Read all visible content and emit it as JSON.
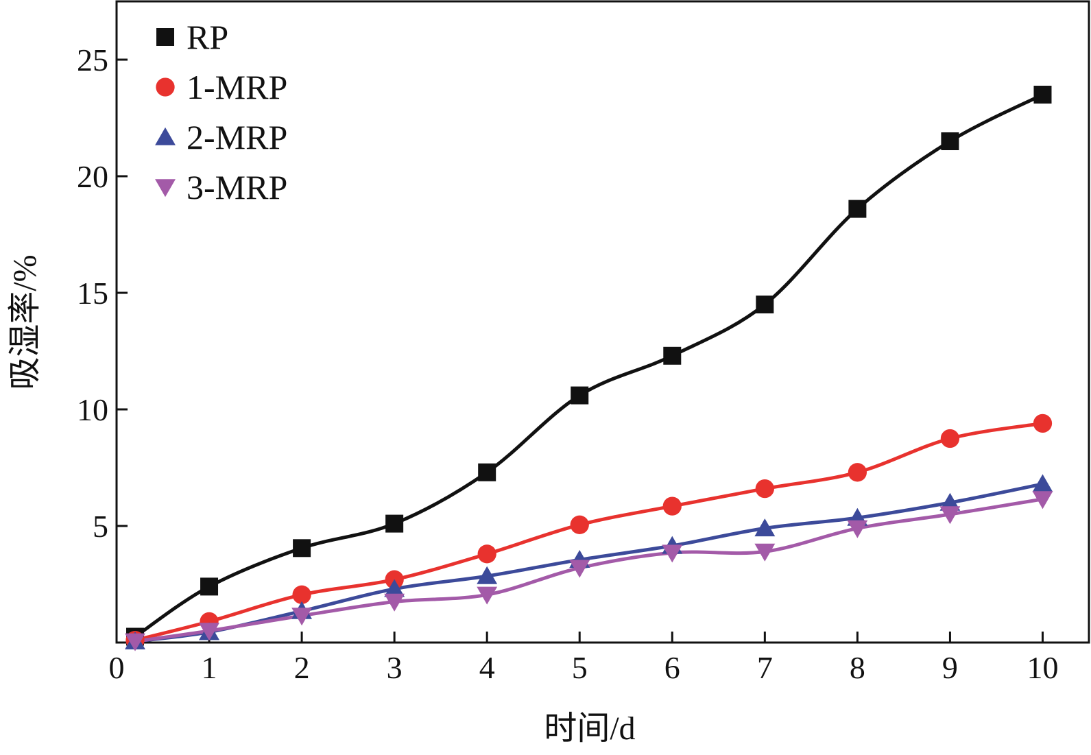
{
  "chart_data": {
    "type": "line",
    "title": "",
    "xlabel": "时间/d",
    "ylabel": "吸湿率/%",
    "xlim": [
      0,
      10.5
    ],
    "ylim": [
      0,
      27.5
    ],
    "xticks": [
      0,
      1,
      2,
      3,
      4,
      5,
      6,
      7,
      8,
      9,
      10
    ],
    "yticks": [
      5,
      10,
      15,
      20,
      25
    ],
    "legend_position": "top-left",
    "grid": false,
    "series": [
      {
        "name": "RP",
        "color": "#111111",
        "marker": "square",
        "x": [
          0.2,
          1,
          2,
          3,
          4,
          5,
          6,
          7,
          8,
          9,
          10
        ],
        "y": [
          0.25,
          2.4,
          4.05,
          5.1,
          7.3,
          10.6,
          12.3,
          14.5,
          18.6,
          21.5,
          23.5
        ]
      },
      {
        "name": "1-MRP",
        "color": "#e8322e",
        "marker": "circle",
        "x": [
          0.2,
          1,
          2,
          3,
          4,
          5,
          6,
          7,
          8,
          9,
          10
        ],
        "y": [
          0.1,
          0.9,
          2.05,
          2.7,
          3.8,
          5.05,
          5.85,
          6.6,
          7.3,
          8.75,
          9.4
        ]
      },
      {
        "name": "2-MRP",
        "color": "#3c4a9a",
        "marker": "triangle-up",
        "x": [
          0.2,
          1,
          2,
          3,
          4,
          5,
          6,
          7,
          8,
          9,
          10
        ],
        "y": [
          0.05,
          0.45,
          1.35,
          2.3,
          2.85,
          3.55,
          4.15,
          4.9,
          5.35,
          6.0,
          6.8
        ]
      },
      {
        "name": "3-MRP",
        "color": "#a35aa8",
        "marker": "triangle-down",
        "x": [
          0.2,
          1,
          2,
          3,
          4,
          5,
          6,
          7,
          8,
          9,
          10
        ],
        "y": [
          0.05,
          0.5,
          1.15,
          1.75,
          2.05,
          3.2,
          3.85,
          3.9,
          4.9,
          5.5,
          6.15
        ]
      }
    ]
  }
}
